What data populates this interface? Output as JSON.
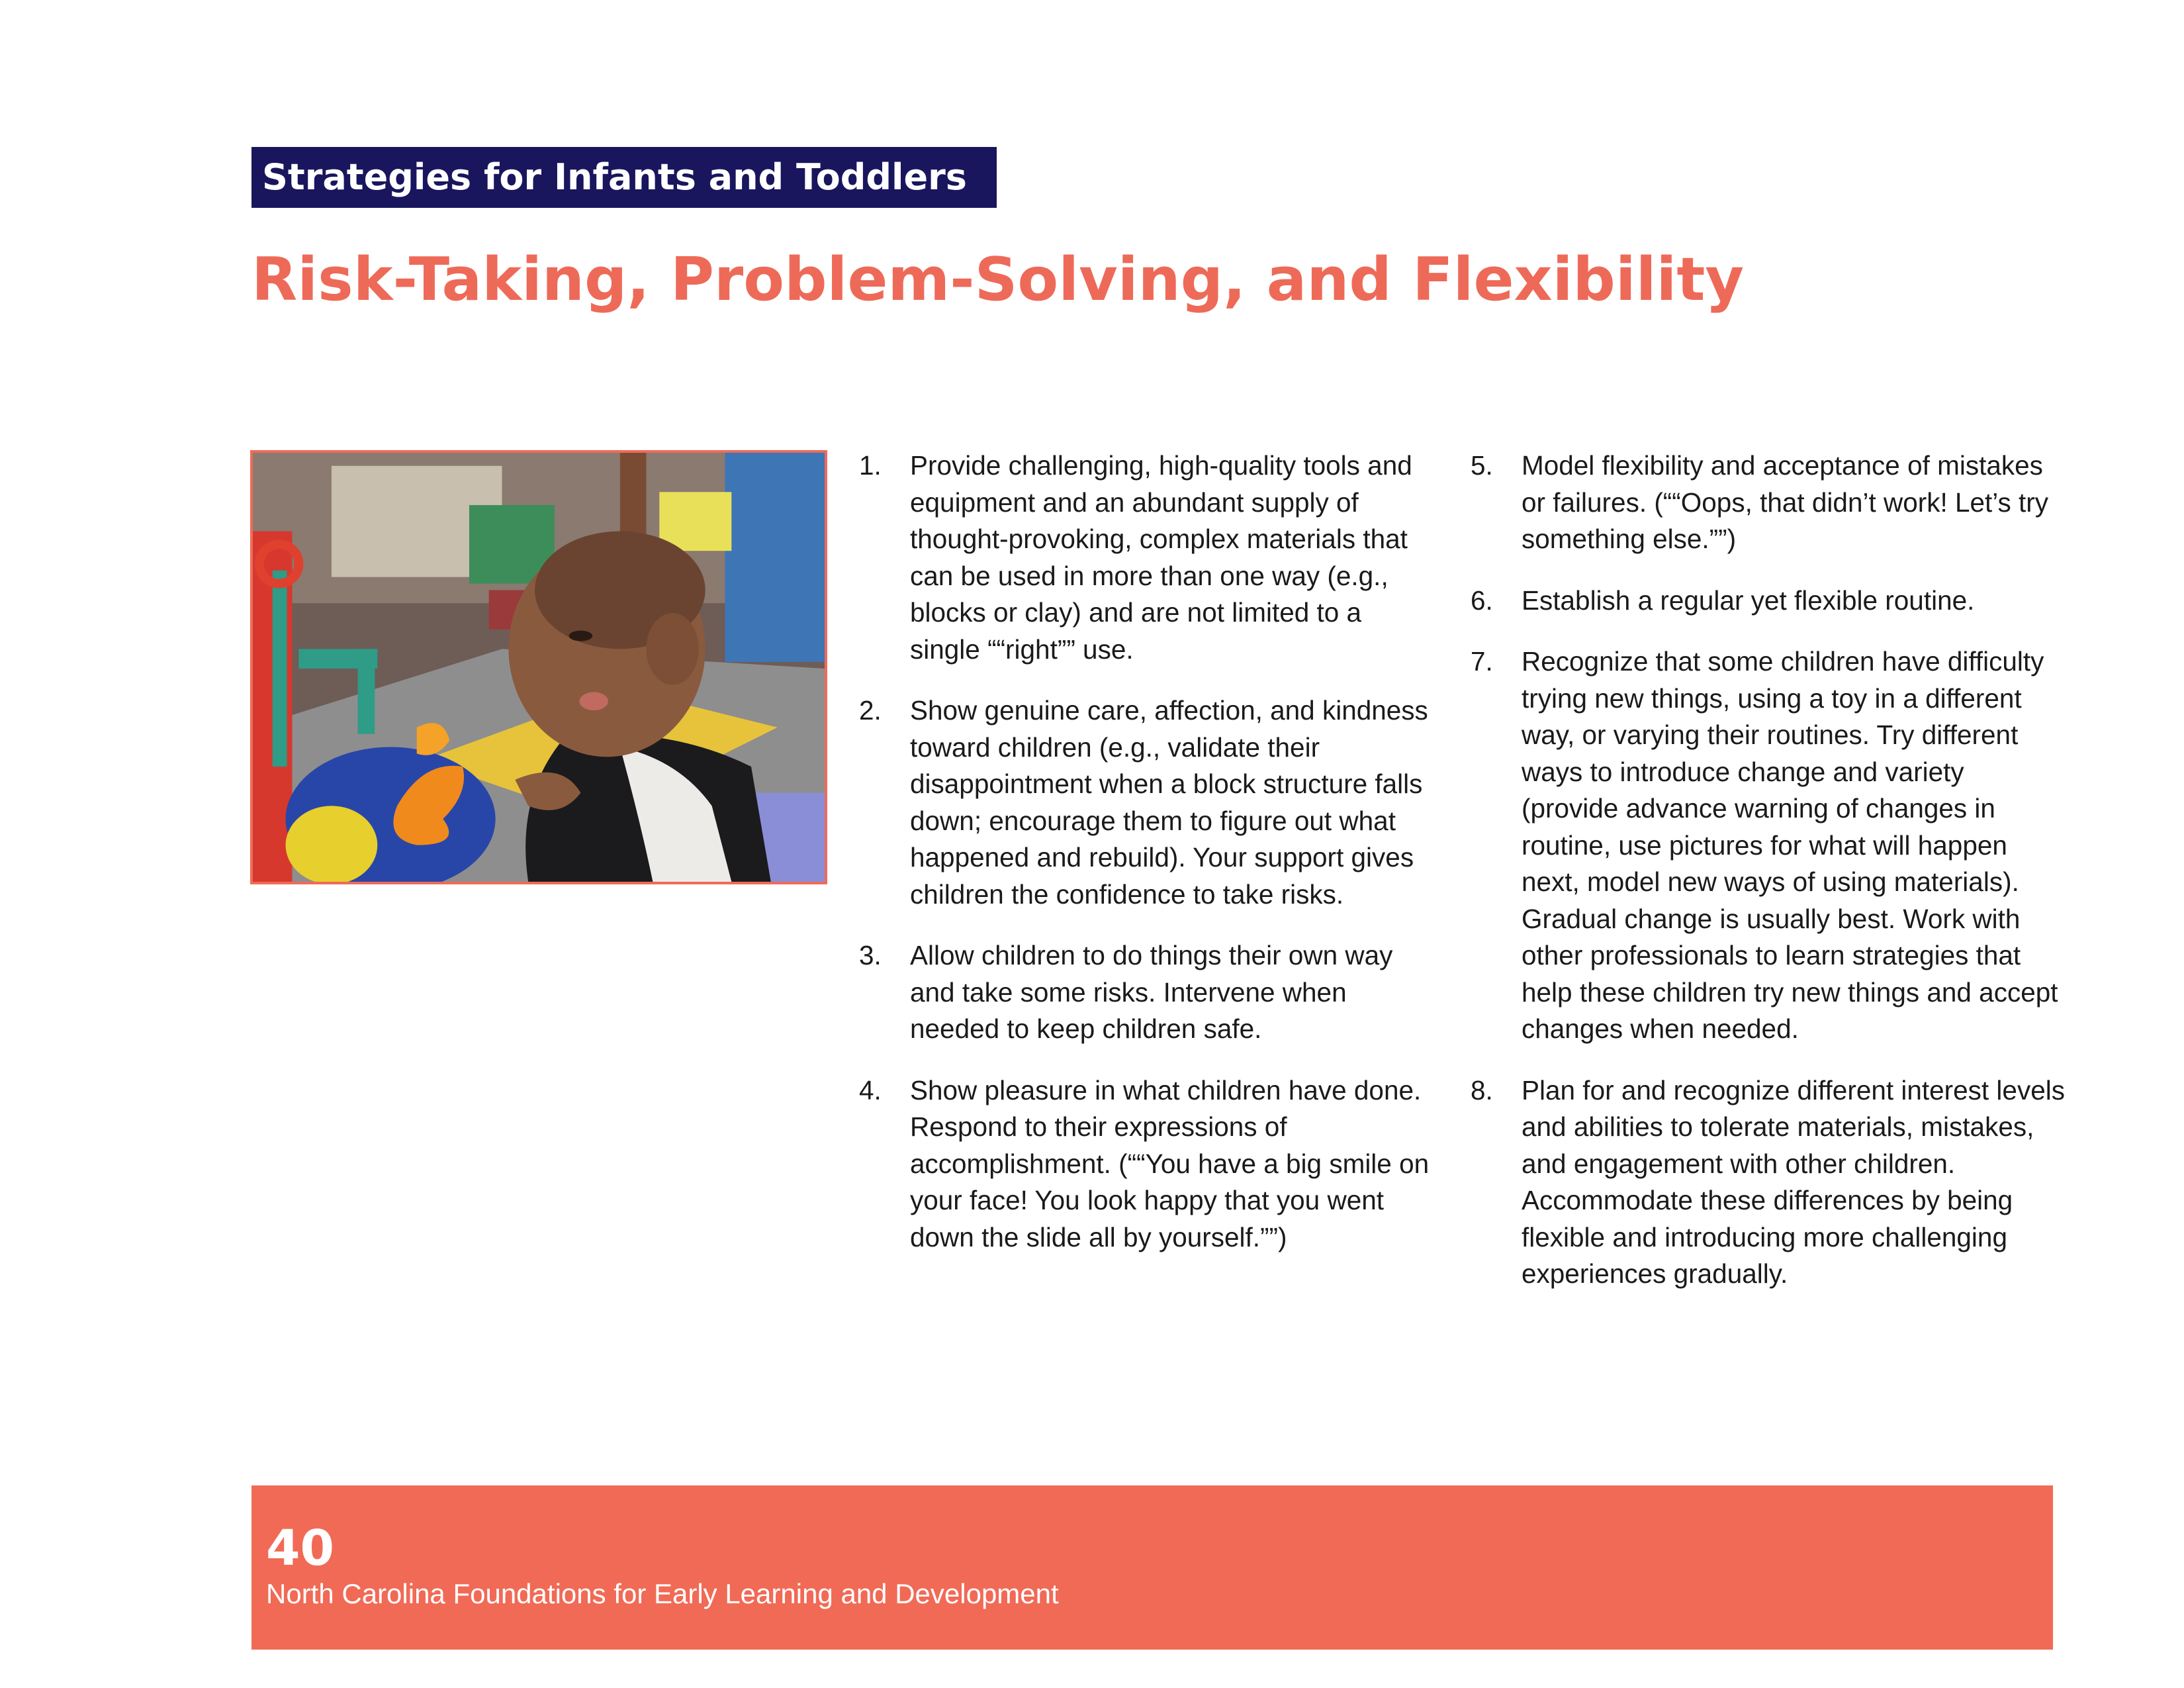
{
  "header": {
    "section_label": "Strategies for Infants and Toddlers",
    "title": "Risk-Taking, Problem-Solving, and Flexibility"
  },
  "photo": {
    "description_icon": "infant-playing-photo"
  },
  "strategies": [
    {
      "number": "1.",
      "text": "Provide challenging, high-quality tools and equipment and an abundant supply of thought-provoking, complex materials that can be used in more than one way (e.g., blocks or clay) and are not limited to a single ““right”” use."
    },
    {
      "number": "2.",
      "text": "Show genuine care, affection, and kindness toward children (e.g., validate their disappointment when a block structure falls down; encourage them to figure out what happened and rebuild). Your support gives children the confidence to take risks."
    },
    {
      "number": "3.",
      "text": "Allow children to do things their own way and take some risks. Intervene when needed to keep children safe."
    },
    {
      "number": "4.",
      "text": "Show pleasure in what children have done. Respond to their expressions of accomplishment. (““You have a big smile on your face! You look happy that you went down the slide all by yourself.””)"
    },
    {
      "number": "5.",
      "text": "Model flexibility and acceptance of mistakes or failures. (““Oops, that didn’t work! Let’s try something else.””)"
    },
    {
      "number": "6.",
      "text": "Establish a regular yet flexible routine."
    },
    {
      "number": "7.",
      "text": "Recognize that some children have difficulty trying new things, using a toy in a different way, or varying their routines. Try different ways to introduce change and variety (provide advance warning of changes in routine, use pictures for what will happen next, model new ways of using materials). Gradual change is usually best. Work with other professionals to learn strategies that help these children try new things and accept changes when needed."
    },
    {
      "number": "8.",
      "text": "Plan for and recognize different interest levels and abilities to tolerate materials, mistakes, and engagement with other children. Accommodate these differences by being flexible and introducing more challenging experiences gradually."
    }
  ],
  "footer": {
    "page_number": "40",
    "publication": "North Carolina Foundations for Early Learning and Development"
  },
  "colors": {
    "banner": "#19165e",
    "title": "#ee6a58",
    "footer": "#f16a56"
  }
}
